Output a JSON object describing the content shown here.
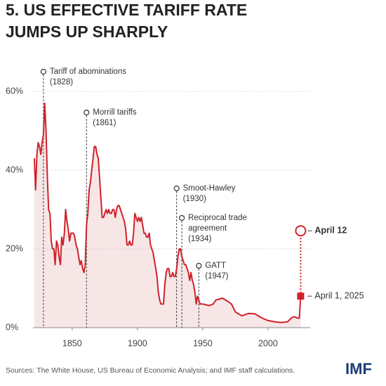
{
  "chart_data": {
    "type": "line",
    "title_lines": [
      "5. US EFFECTIVE TARIFF RATE",
      "JUMPS UP SHARPLY"
    ],
    "x": [
      1821,
      1822,
      1823,
      1824,
      1825,
      1826,
      1827,
      1828,
      1829,
      1830,
      1831,
      1832,
      1833,
      1834,
      1835,
      1836,
      1837,
      1838,
      1839,
      1840,
      1841,
      1842,
      1843,
      1844,
      1845,
      1846,
      1847,
      1848,
      1849,
      1850,
      1851,
      1852,
      1853,
      1854,
      1855,
      1856,
      1857,
      1858,
      1859,
      1860,
      1861,
      1862,
      1863,
      1864,
      1865,
      1866,
      1867,
      1868,
      1869,
      1870,
      1871,
      1872,
      1873,
      1874,
      1875,
      1876,
      1877,
      1878,
      1879,
      1880,
      1881,
      1882,
      1883,
      1884,
      1885,
      1886,
      1887,
      1888,
      1889,
      1890,
      1891,
      1892,
      1893,
      1894,
      1895,
      1896,
      1897,
      1898,
      1899,
      1900,
      1901,
      1902,
      1903,
      1904,
      1905,
      1906,
      1907,
      1908,
      1909,
      1910,
      1911,
      1912,
      1913,
      1914,
      1915,
      1916,
      1917,
      1918,
      1919,
      1920,
      1921,
      1922,
      1923,
      1924,
      1925,
      1926,
      1927,
      1928,
      1929,
      1930,
      1931,
      1932,
      1933,
      1934,
      1935,
      1936,
      1937,
      1938,
      1939,
      1940,
      1941,
      1942,
      1943,
      1944,
      1945,
      1946,
      1947,
      1948,
      1950,
      1955,
      1958,
      1960,
      1965,
      1970,
      1972,
      1975,
      1980,
      1985,
      1990,
      1995,
      2000,
      2005,
      2010,
      2015,
      2018,
      2020,
      2022,
      2024,
      2025
    ],
    "series": [
      {
        "name": "US effective tariff rate",
        "color": "#d0212b",
        "values": [
          43,
          35,
          44,
          47,
          46,
          44,
          47,
          49,
          57,
          50,
          38,
          30,
          29,
          22,
          20,
          20,
          16,
          22,
          21,
          18,
          16,
          23,
          21,
          24,
          30,
          27,
          25,
          22,
          24,
          24,
          24,
          23,
          21,
          20,
          18,
          16,
          17,
          15,
          14,
          16,
          26,
          29,
          35,
          37,
          40,
          43,
          46,
          46,
          44,
          43,
          38,
          33,
          28,
          28,
          29,
          30,
          29,
          30,
          29,
          29,
          30,
          30,
          28,
          30,
          31,
          31,
          30,
          29,
          28,
          27,
          25,
          21,
          21,
          22,
          21,
          21,
          24,
          29,
          28,
          27,
          28,
          27,
          28,
          26,
          24,
          24,
          23,
          23,
          24,
          21,
          20,
          19,
          17,
          15,
          13,
          9,
          7,
          6,
          6,
          6,
          11,
          14,
          15,
          15,
          13,
          13,
          14,
          13,
          13,
          15,
          18,
          20,
          20,
          18,
          17,
          16,
          16,
          15,
          14,
          12,
          14,
          12,
          11,
          9,
          6,
          8,
          7,
          6,
          6,
          5.6,
          6,
          7,
          7.5,
          6.5,
          6,
          4,
          3,
          3.6,
          3.5,
          2.5,
          1.8,
          1.5,
          1.3,
          1.5,
          2.5,
          2.8,
          2.5,
          2.4,
          8
        ]
      }
    ],
    "xlim": [
      1820,
      2035
    ],
    "xticks": [
      1850,
      1900,
      1950,
      2000
    ],
    "ylim": [
      0,
      60
    ],
    "yticks": [
      {
        "value": 0,
        "label": "0%"
      },
      {
        "value": 20,
        "label": "20%"
      },
      {
        "value": 40,
        "label": "40%"
      },
      {
        "value": 60,
        "label": "60%"
      }
    ],
    "grid": true,
    "annotations": [
      {
        "x": 1828,
        "lines": [
          "Tariff of abominations",
          "(1828)"
        ]
      },
      {
        "x": 1861,
        "lines": [
          "Morrill tariffs",
          "(1861)"
        ]
      },
      {
        "x": 1930,
        "lines": [
          "Smoot-Hawley",
          "(1930)"
        ]
      },
      {
        "x": 1934,
        "lines": [
          "Reciprocal trade",
          "agreement",
          "(1934)"
        ]
      },
      {
        "x": 1947,
        "lines": [
          "GATT",
          "(1947)"
        ]
      }
    ],
    "highlights": [
      {
        "label": "April 1, 2025",
        "x": 2025,
        "value": 8
      },
      {
        "label": "April 12",
        "x": 2025,
        "value": 24.6
      }
    ],
    "source": "Sources: The White House, US Bureau of Economic Analysis; and IMF staff calculations.",
    "logo": "IMF"
  }
}
